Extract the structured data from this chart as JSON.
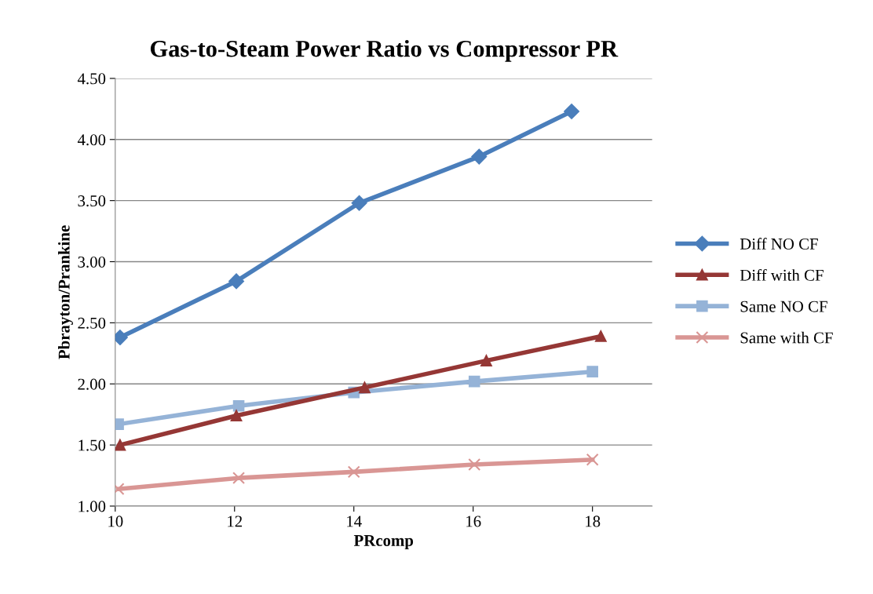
{
  "chart_data": {
    "type": "line",
    "title": "Gas-to-Steam Power Ratio vs Compressor PR",
    "xlabel": "PRcomp",
    "ylabel": "Pbrayton/Prankine",
    "xlim": [
      10,
      19
    ],
    "xticks": [
      10,
      12,
      14,
      16,
      18
    ],
    "ylim": [
      1.0,
      4.5
    ],
    "yticks": [
      {
        "value": 1.0,
        "label": "1.00"
      },
      {
        "value": 1.5,
        "label": "1.50"
      },
      {
        "value": 2.0,
        "label": "2.00"
      },
      {
        "value": 2.5,
        "label": "2.50"
      },
      {
        "value": 3.0,
        "label": "3.00"
      },
      {
        "value": 3.5,
        "label": "3.50"
      },
      {
        "value": 4.0,
        "label": "4.00"
      },
      {
        "value": 4.5,
        "label": "4.50"
      }
    ],
    "grid": "y",
    "legend": "right",
    "series": [
      {
        "name": "Diff NO CF",
        "color": "#4a7ebb",
        "marker": "diamond",
        "x": [
          10.08,
          12.03,
          14.09,
          16.1,
          17.65
        ],
        "values": [
          2.38,
          2.84,
          3.48,
          3.86,
          4.23
        ]
      },
      {
        "name": "Diff with CF",
        "color": "#953735",
        "marker": "triangle",
        "x": [
          10.08,
          12.03,
          14.18,
          16.22,
          18.14
        ],
        "values": [
          1.5,
          1.74,
          1.97,
          2.19,
          2.39
        ]
      },
      {
        "name": "Same NO CF",
        "color": "#95b3d7",
        "marker": "square",
        "x": [
          10.05,
          12.07,
          14.0,
          16.02,
          18.0
        ],
        "values": [
          1.67,
          1.82,
          1.93,
          2.02,
          2.1
        ]
      },
      {
        "name": "Same with CF",
        "color": "#d99694",
        "marker": "cross",
        "x": [
          10.05,
          12.07,
          14.0,
          16.02,
          18.0
        ],
        "values": [
          1.14,
          1.23,
          1.28,
          1.34,
          1.38
        ]
      }
    ]
  }
}
